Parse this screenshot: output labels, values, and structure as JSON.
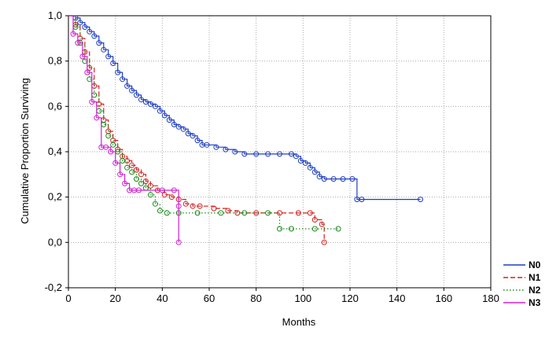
{
  "chart_data": {
    "type": "line",
    "title": "",
    "xlabel": "Months",
    "ylabel": "Cumulative Proportion Surviving",
    "xlim": [
      0,
      180
    ],
    "ylim": [
      -0.2,
      1.0
    ],
    "grid": true,
    "legend_position": "bottom-right, outside plot",
    "x_ticks": [
      "0",
      "20",
      "40",
      "60",
      "80",
      "100",
      "120",
      "140",
      "160",
      "180"
    ],
    "y_ticks": [
      "-0,2",
      "0,0",
      "0,2",
      "0,4",
      "0,6",
      "0,8",
      "1,0"
    ],
    "series": [
      {
        "name": "N0",
        "color": "#1f3fbf",
        "dash": "solid",
        "x": [
          0,
          3,
          5,
          7,
          9,
          11,
          13,
          15,
          17,
          19,
          21,
          23,
          25,
          27,
          29,
          31,
          33,
          35,
          37,
          39,
          41,
          43,
          45,
          47,
          49,
          51,
          53,
          55,
          57,
          59,
          63,
          67,
          71,
          75,
          80,
          85,
          90,
          95,
          97,
          99,
          101,
          103,
          105,
          107,
          109,
          113,
          117,
          121,
          123,
          125,
          150
        ],
        "y": [
          1.0,
          0.99,
          0.97,
          0.95,
          0.93,
          0.91,
          0.88,
          0.85,
          0.82,
          0.79,
          0.75,
          0.72,
          0.69,
          0.67,
          0.65,
          0.63,
          0.62,
          0.61,
          0.6,
          0.58,
          0.56,
          0.54,
          0.52,
          0.51,
          0.5,
          0.48,
          0.47,
          0.45,
          0.43,
          0.43,
          0.42,
          0.41,
          0.4,
          0.39,
          0.39,
          0.39,
          0.39,
          0.39,
          0.38,
          0.36,
          0.35,
          0.33,
          0.31,
          0.29,
          0.28,
          0.28,
          0.28,
          0.28,
          0.19,
          0.19,
          0.19
        ]
      },
      {
        "name": "N1",
        "color": "#d42020",
        "dash": "dashed",
        "x": [
          0,
          3,
          5,
          7,
          9,
          11,
          13,
          15,
          17,
          19,
          21,
          23,
          25,
          27,
          29,
          31,
          33,
          35,
          38,
          41,
          44,
          47,
          50,
          53,
          56,
          62,
          68,
          72,
          80,
          90,
          98,
          103,
          105,
          108,
          109
        ],
        "y": [
          1.0,
          0.96,
          0.9,
          0.84,
          0.77,
          0.69,
          0.61,
          0.54,
          0.49,
          0.45,
          0.41,
          0.38,
          0.36,
          0.34,
          0.32,
          0.3,
          0.27,
          0.25,
          0.23,
          0.21,
          0.2,
          0.19,
          0.17,
          0.16,
          0.16,
          0.15,
          0.14,
          0.13,
          0.13,
          0.13,
          0.13,
          0.13,
          0.1,
          0.08,
          0.0
        ]
      },
      {
        "name": "N2",
        "color": "#1a8a1a",
        "dash": "dotted",
        "x": [
          0,
          3,
          5,
          7,
          9,
          11,
          13,
          15,
          17,
          19,
          21,
          23,
          25,
          27,
          29,
          31,
          33,
          35,
          37,
          39,
          42,
          47,
          55,
          65,
          75,
          85,
          90,
          95,
          105,
          115
        ],
        "y": [
          1.0,
          0.95,
          0.88,
          0.8,
          0.72,
          0.65,
          0.58,
          0.52,
          0.47,
          0.43,
          0.4,
          0.36,
          0.33,
          0.31,
          0.28,
          0.26,
          0.24,
          0.21,
          0.17,
          0.14,
          0.13,
          0.13,
          0.13,
          0.13,
          0.13,
          0.13,
          0.06,
          0.06,
          0.06,
          0.06
        ]
      },
      {
        "name": "N3",
        "color": "#d020d0",
        "dash": "solid",
        "x": [
          0,
          2,
          4,
          6,
          8,
          10,
          12,
          14,
          16,
          18,
          20,
          22,
          24,
          26,
          28,
          30,
          40,
          45,
          47,
          47
        ],
        "y": [
          1.0,
          0.92,
          0.88,
          0.82,
          0.75,
          0.62,
          0.55,
          0.42,
          0.42,
          0.4,
          0.35,
          0.3,
          0.26,
          0.23,
          0.23,
          0.23,
          0.23,
          0.23,
          0.16,
          0.0
        ]
      }
    ]
  }
}
